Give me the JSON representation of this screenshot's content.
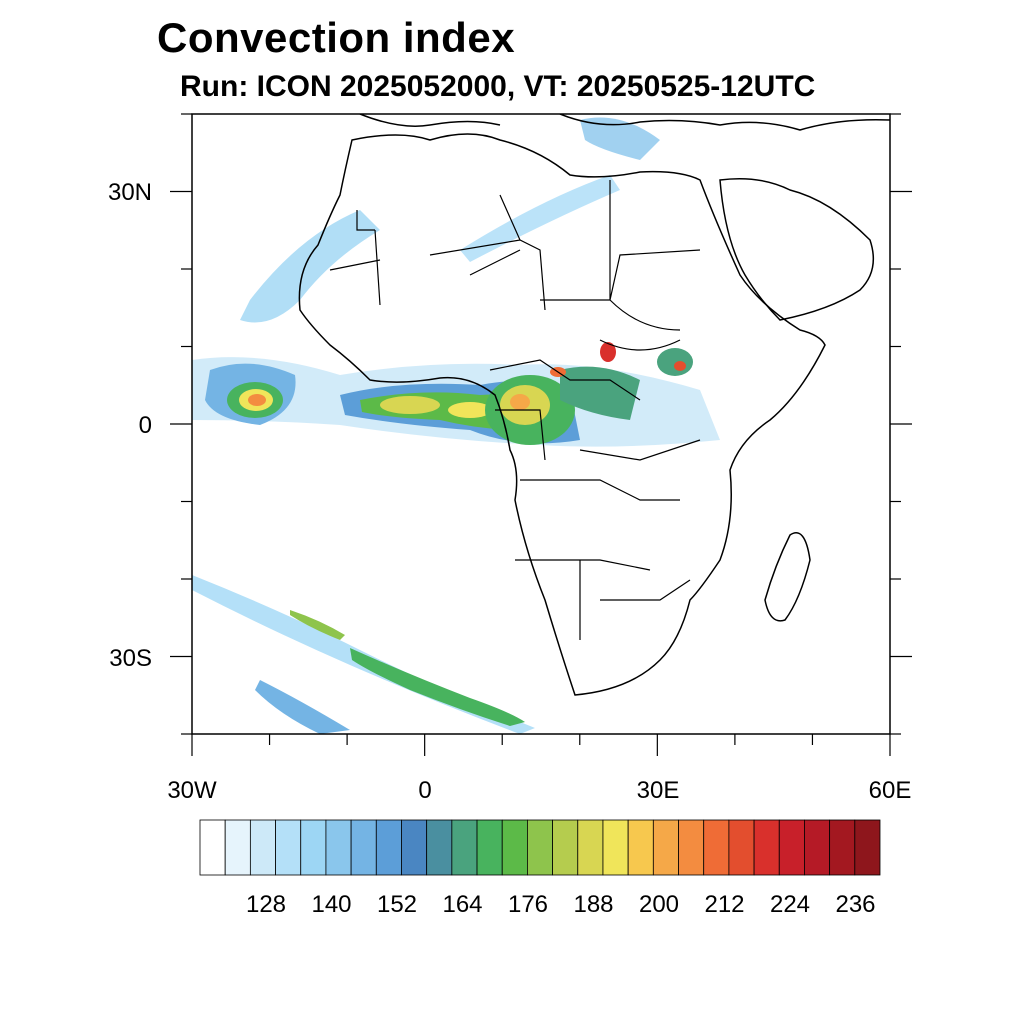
{
  "title": "Convection index",
  "subtitle": "Run: ICON 2025052000,  VT: 20250525-12UTC",
  "map": {
    "lon_range": [
      -30,
      60
    ],
    "lat_range": [
      -40,
      40
    ],
    "lon_labels": [
      "30W",
      "0",
      "30E",
      "60E"
    ],
    "lat_labels": [
      "30N",
      "0",
      "30S"
    ]
  },
  "colorbar": {
    "labels": [
      "128",
      "140",
      "152",
      "164",
      "176",
      "188",
      "200",
      "212",
      "224",
      "236"
    ],
    "colors": [
      "#ffffff",
      "#e6f4fc",
      "#cde9f8",
      "#b4e0f8",
      "#9dd6f4",
      "#8ac6ec",
      "#74b4e4",
      "#5c9ed8",
      "#4a86c2",
      "#4a8fa0",
      "#4aa37e",
      "#48b35e",
      "#5cba48",
      "#8ec44c",
      "#b5cc4e",
      "#d8d652",
      "#f0e55a",
      "#f7c84e",
      "#f5a848",
      "#f38c40",
      "#ef6c36",
      "#e34e2e",
      "#d9302c",
      "#c8202a",
      "#b51a26",
      "#a31820",
      "#8e161c"
    ]
  }
}
